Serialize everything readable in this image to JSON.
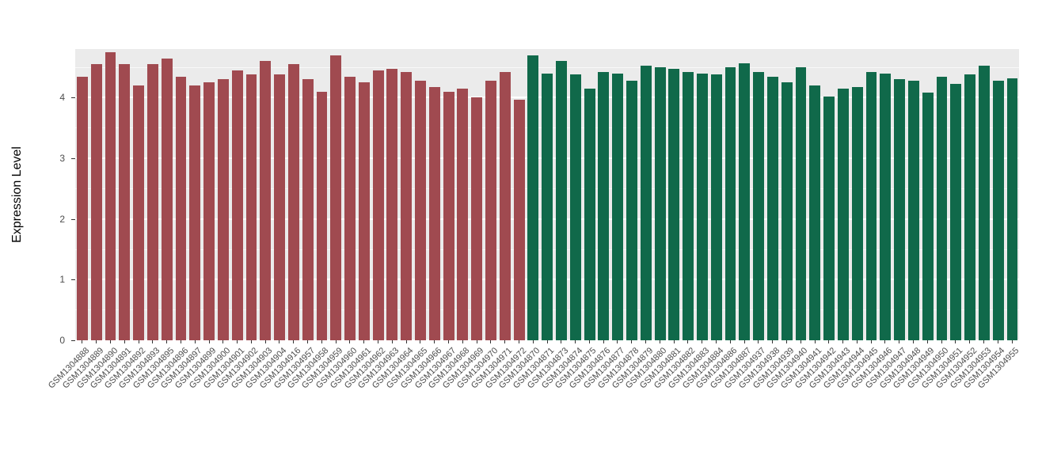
{
  "chart_data": {
    "type": "bar",
    "title": "",
    "xlabel": "",
    "ylabel": "Expression Level",
    "ylim": [
      0,
      4.8
    ],
    "yticks": [
      0,
      1,
      2,
      3,
      4
    ],
    "grid": "major and minor horizontal white gridlines on gray panel",
    "legend": "none",
    "panel_background": "#EBEBEB",
    "grid_color": "#FFFFFF",
    "axis_text_color": "#4D4D4D",
    "bar_groups": [
      {
        "name": "group-1-maroon",
        "color": "#A04A50",
        "count": 32
      },
      {
        "name": "group-2-green",
        "color": "#10694A",
        "count": 35
      }
    ],
    "categories": [
      "GSM1304888",
      "GSM1304889",
      "GSM1304890",
      "GSM1304891",
      "GSM1304892",
      "GSM1304893",
      "GSM1304895",
      "GSM1304896",
      "GSM1304897",
      "GSM1304899",
      "GSM1304900",
      "GSM1304901",
      "GSM1304902",
      "GSM1304903",
      "GSM1304904",
      "GSM1304916",
      "GSM1304957",
      "GSM1304958",
      "GSM1304959",
      "GSM1304960",
      "GSM1304961",
      "GSM1304962",
      "GSM1304963",
      "GSM1304964",
      "GSM1304965",
      "GSM1304966",
      "GSM1304967",
      "GSM1304968",
      "GSM1304969",
      "GSM1304970",
      "GSM1304971",
      "GSM1304972",
      "GSM1304870",
      "GSM1304871",
      "GSM1304873",
      "GSM1304874",
      "GSM1304875",
      "GSM1304876",
      "GSM1304877",
      "GSM1304878",
      "GSM1304879",
      "GSM1304880",
      "GSM1304881",
      "GSM1304882",
      "GSM1304883",
      "GSM1304884",
      "GSM1304886",
      "GSM1304887",
      "GSM1304937",
      "GSM1304938",
      "GSM1304939",
      "GSM1304940",
      "GSM1304941",
      "GSM1304942",
      "GSM1304943",
      "GSM1304944",
      "GSM1304945",
      "GSM1304946",
      "GSM1304947",
      "GSM1304948",
      "GSM1304949",
      "GSM1304950",
      "GSM1304951",
      "GSM1304952",
      "GSM1304953",
      "GSM1304954",
      "GSM1304955"
    ],
    "values": [
      4.35,
      4.55,
      4.75,
      4.55,
      4.2,
      4.55,
      4.65,
      4.35,
      4.2,
      4.25,
      4.3,
      4.45,
      4.38,
      4.6,
      4.38,
      4.55,
      4.3,
      4.1,
      4.7,
      4.35,
      4.25,
      4.45,
      4.48,
      4.42,
      4.28,
      4.18,
      4.1,
      4.15,
      4.0,
      4.28,
      4.42,
      3.97,
      4.7,
      4.4,
      4.6,
      4.38,
      4.15,
      4.42,
      4.4,
      4.28,
      4.52,
      4.5,
      4.48,
      4.42,
      4.4,
      4.38,
      4.5,
      4.57,
      4.42,
      4.35,
      4.25,
      4.5,
      4.2,
      4.02,
      4.15,
      4.18,
      4.42,
      4.4,
      4.3,
      4.28,
      4.08,
      4.35,
      4.22,
      4.38,
      4.52,
      4.28,
      4.32
    ]
  }
}
